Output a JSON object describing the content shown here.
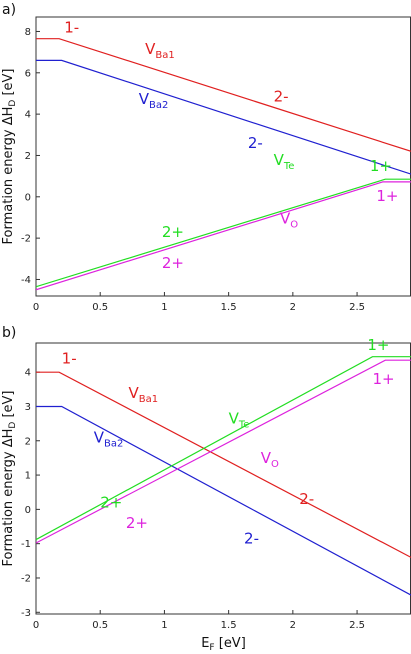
{
  "chart_data": [
    {
      "type": "line",
      "panel_label": "a)",
      "xlabel": "",
      "ylabel": "Formation energy ΔH",
      "ylabel_sub": "D",
      "ylabel_unit": " [eV]",
      "xlim": [
        0,
        2.92
      ],
      "ylim": [
        -4.8,
        8.7
      ],
      "x_ticks": [
        0,
        0.5,
        1,
        1.5,
        2,
        2.5
      ],
      "x_tick_labels": [
        "0",
        "0.5",
        "1",
        "1.5",
        "2",
        "2.5"
      ],
      "y_ticks": [
        -4,
        -2,
        0,
        2,
        4,
        6,
        8
      ],
      "y_tick_labels": [
        "-4",
        "-2",
        "0",
        "2",
        "4",
        "6",
        "8"
      ],
      "series": [
        {
          "color": "#e02020",
          "x": [
            0,
            0.18,
            2.92
          ],
          "y": [
            7.65,
            7.65,
            2.2
          ]
        },
        {
          "color": "#2020d0",
          "x": [
            0,
            0.2,
            2.92
          ],
          "y": [
            6.6,
            6.6,
            1.1
          ]
        },
        {
          "color": "#22dd22",
          "x": [
            0,
            2.72,
            2.92
          ],
          "y": [
            -4.35,
            0.85,
            0.85
          ]
        },
        {
          "color": "#dd22dd",
          "x": [
            0,
            2.7,
            2.92
          ],
          "y": [
            -4.5,
            0.72,
            0.72
          ]
        }
      ],
      "annotations": [
        {
          "text": "1-",
          "color": "#e02020",
          "x": 0.22,
          "y": 7.95
        },
        {
          "text": "V",
          "sub": "Ba1",
          "color": "#e02020",
          "x": 0.85,
          "y": 6.9
        },
        {
          "text": "2-",
          "color": "#e02020",
          "x": 1.85,
          "y": 4.6
        },
        {
          "text": "V",
          "sub": "Ba2",
          "color": "#2020d0",
          "x": 0.8,
          "y": 4.5
        },
        {
          "text": "2-",
          "color": "#2020d0",
          "x": 1.65,
          "y": 2.35
        },
        {
          "text": "1+",
          "color": "#22dd22",
          "x": 2.6,
          "y": 1.25
        },
        {
          "text": "V",
          "sub": "Te",
          "color": "#22dd22",
          "x": 1.85,
          "y": 1.55
        },
        {
          "text": "1+",
          "color": "#dd22dd",
          "x": 2.65,
          "y": -0.2
        },
        {
          "text": "2+",
          "color": "#22dd22",
          "x": 0.98,
          "y": -1.95
        },
        {
          "text": "V",
          "sub": "O",
          "color": "#dd22dd",
          "x": 1.9,
          "y": -1.3
        },
        {
          "text": "2+",
          "color": "#dd22dd",
          "x": 0.98,
          "y": -3.45
        }
      ]
    },
    {
      "type": "line",
      "panel_label": "b)",
      "xlabel": "E",
      "xlabel_sub": "F",
      "xlabel_unit": " [eV]",
      "ylabel": "Formation energy ΔH",
      "ylabel_sub": "D",
      "ylabel_unit": " [eV]",
      "xlim": [
        0,
        2.92
      ],
      "ylim": [
        -3.05,
        4.85
      ],
      "x_ticks": [
        0,
        0.5,
        1,
        1.5,
        2,
        2.5
      ],
      "x_tick_labels": [
        "0",
        "0.5",
        "1",
        "1.5",
        "2",
        "2.5"
      ],
      "y_ticks": [
        -3,
        -2,
        -1,
        0,
        1,
        2,
        3,
        4
      ],
      "y_tick_labels": [
        "-3",
        "-2",
        "-1",
        "0",
        "1",
        "2",
        "3",
        "4"
      ],
      "series": [
        {
          "color": "#e02020",
          "x": [
            0,
            0.18,
            2.92
          ],
          "y": [
            4.0,
            4.0,
            -1.4
          ]
        },
        {
          "color": "#2020d0",
          "x": [
            0,
            0.2,
            2.92
          ],
          "y": [
            3.0,
            3.0,
            -2.5
          ]
        },
        {
          "color": "#22dd22",
          "x": [
            0,
            2.62,
            2.92
          ],
          "y": [
            -0.88,
            4.45,
            4.45
          ]
        },
        {
          "color": "#dd22dd",
          "x": [
            0,
            2.72,
            2.92
          ],
          "y": [
            -0.98,
            4.35,
            4.35
          ]
        }
      ],
      "annotations": [
        {
          "text": "1-",
          "color": "#e02020",
          "x": 0.2,
          "y": 4.25
        },
        {
          "text": "V",
          "sub": "Ba1",
          "color": "#e02020",
          "x": 0.72,
          "y": 3.25
        },
        {
          "text": "2-",
          "color": "#e02020",
          "x": 2.05,
          "y": 0.15
        },
        {
          "text": "V",
          "sub": "Ba2",
          "color": "#2020d0",
          "x": 0.45,
          "y": 1.95
        },
        {
          "text": "2-",
          "color": "#2020d0",
          "x": 1.62,
          "y": -1.0
        },
        {
          "text": "1+",
          "color": "#22dd22",
          "x": 2.58,
          "y": 4.65
        },
        {
          "text": "V",
          "sub": "Te",
          "color": "#22dd22",
          "x": 1.5,
          "y": 2.5
        },
        {
          "text": "1+",
          "color": "#dd22dd",
          "x": 2.62,
          "y": 3.65
        },
        {
          "text": "2+",
          "color": "#22dd22",
          "x": 0.5,
          "y": 0.05
        },
        {
          "text": "V",
          "sub": "O",
          "color": "#dd22dd",
          "x": 1.75,
          "y": 1.35
        },
        {
          "text": "2+",
          "color": "#dd22dd",
          "x": 0.7,
          "y": -0.55
        }
      ]
    }
  ]
}
